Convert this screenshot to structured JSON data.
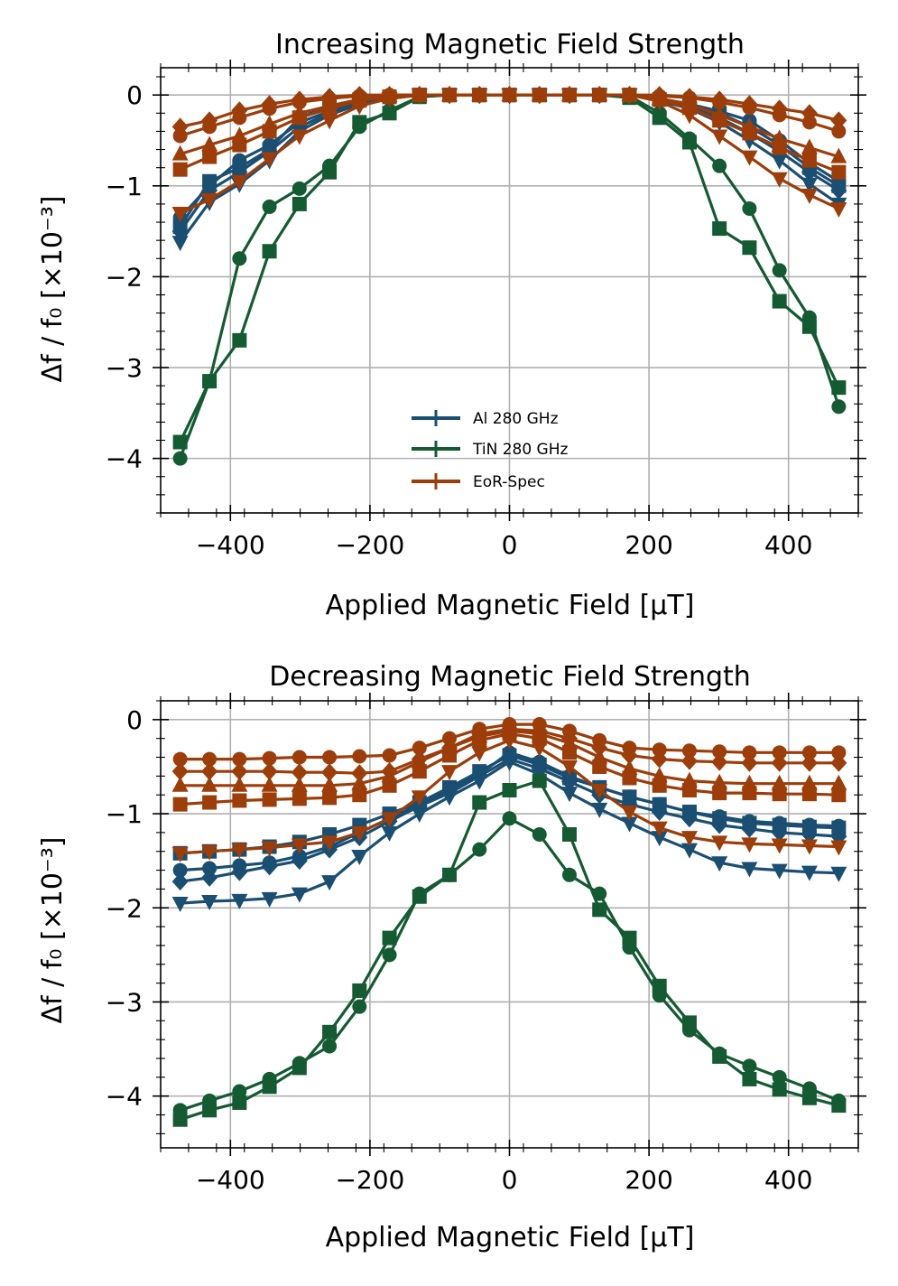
{
  "colors": {
    "al": "#1b4f72",
    "tin": "#145a32",
    "eor": "#9c3d0a"
  },
  "legend": [
    "Al 280 GHz",
    "TiN 280 GHz",
    "EoR-Spec"
  ],
  "chart_data": [
    {
      "type": "line",
      "title": "Increasing Magnetic Field Strength",
      "xlabel": "Applied Magnetic Field [μT]",
      "ylabel": "Δf / f₀ [×10⁻³]",
      "xlim": [
        -500,
        500
      ],
      "ylim": [
        -4.6,
        0.3
      ],
      "xticks": [
        -400,
        -200,
        0,
        200,
        400
      ],
      "xtick_labels": [
        "−400",
        "−200",
        "0",
        "200",
        "400"
      ],
      "yticks": [
        0,
        -1,
        -2,
        -3,
        -4
      ],
      "ytick_labels": [
        "0",
        "−1",
        "−2",
        "−3",
        "−4"
      ],
      "grid": true,
      "legend_position": "lower-center",
      "x": [
        -472,
        -430,
        -387,
        -344,
        -301,
        -258,
        -215,
        -172,
        -129,
        -86,
        -43,
        0,
        43,
        86,
        129,
        172,
        215,
        258,
        301,
        344,
        387,
        430,
        472
      ],
      "series": [
        {
          "name": "Al 280 GHz",
          "group": "al",
          "marker": "circle",
          "values": [
            -1.35,
            -1.0,
            -0.72,
            -0.55,
            -0.3,
            -0.18,
            -0.08,
            -0.03,
            0,
            0,
            0,
            0,
            0,
            0,
            0,
            0,
            -0.04,
            -0.1,
            -0.18,
            -0.28,
            -0.5,
            -0.75,
            -0.95
          ]
        },
        {
          "name": "Al 280 GHz",
          "group": "al",
          "marker": "square",
          "values": [
            -1.45,
            -0.95,
            -0.8,
            -0.6,
            -0.25,
            -0.12,
            -0.05,
            -0.02,
            0,
            0,
            0,
            0,
            0,
            0,
            0,
            0,
            -0.05,
            -0.12,
            -0.2,
            -0.35,
            -0.55,
            -0.8,
            -1.0
          ]
        },
        {
          "name": "Al 280 GHz",
          "group": "al",
          "marker": "diamond",
          "values": [
            -1.5,
            -1.05,
            -0.85,
            -0.62,
            -0.35,
            -0.2,
            -0.09,
            -0.04,
            0,
            0,
            0,
            0,
            0,
            0,
            0,
            0,
            -0.05,
            -0.13,
            -0.25,
            -0.42,
            -0.62,
            -0.85,
            -1.05
          ]
        },
        {
          "name": "Al 280 GHz",
          "group": "al",
          "marker": "triangle_down",
          "values": [
            -1.62,
            -1.18,
            -0.98,
            -0.72,
            -0.4,
            -0.22,
            -0.1,
            -0.04,
            0,
            0,
            0,
            0,
            0,
            0,
            0,
            0,
            -0.06,
            -0.15,
            -0.3,
            -0.5,
            -0.72,
            -0.98,
            -1.2
          ]
        },
        {
          "name": "TiN 280 GHz",
          "group": "tin",
          "marker": "circle",
          "values": [
            -4.0,
            -3.15,
            -1.8,
            -1.23,
            -1.03,
            -0.78,
            -0.35,
            -0.17,
            -0.02,
            0,
            0,
            0,
            0,
            0,
            0,
            -0.01,
            -0.2,
            -0.48,
            -0.78,
            -1.25,
            -1.93,
            -2.45,
            -3.43
          ]
        },
        {
          "name": "TiN 280 GHz",
          "group": "tin",
          "marker": "square",
          "values": [
            -3.82,
            -3.15,
            -2.7,
            -1.72,
            -1.2,
            -0.85,
            -0.3,
            -0.2,
            -0.02,
            0,
            0,
            0,
            0,
            0,
            0,
            -0.03,
            -0.25,
            -0.52,
            -1.47,
            -1.68,
            -2.27,
            -2.55,
            -3.22
          ]
        },
        {
          "name": "EoR-Spec",
          "group": "eor",
          "marker": "diamond",
          "values": [
            -0.35,
            -0.28,
            -0.17,
            -0.1,
            -0.05,
            -0.02,
            0,
            0,
            0,
            0,
            0,
            0,
            0,
            0,
            0,
            0,
            0,
            -0.02,
            -0.05,
            -0.1,
            -0.15,
            -0.2,
            -0.28
          ]
        },
        {
          "name": "EoR-Spec",
          "group": "eor",
          "marker": "circle",
          "values": [
            -0.45,
            -0.35,
            -0.25,
            -0.15,
            -0.08,
            -0.04,
            -0.01,
            0,
            0,
            0,
            0,
            0,
            0,
            0,
            0,
            0,
            -0.01,
            -0.03,
            -0.08,
            -0.14,
            -0.22,
            -0.3,
            -0.4
          ]
        },
        {
          "name": "EoR-Spec",
          "group": "eor",
          "marker": "triangle_up",
          "values": [
            -0.65,
            -0.55,
            -0.45,
            -0.32,
            -0.2,
            -0.12,
            -0.05,
            -0.01,
            0,
            0,
            0,
            0,
            0,
            0,
            0,
            0,
            -0.04,
            -0.1,
            -0.22,
            -0.35,
            -0.48,
            -0.58,
            -0.68
          ]
        },
        {
          "name": "EoR-Spec",
          "group": "eor",
          "marker": "square",
          "values": [
            -0.82,
            -0.68,
            -0.55,
            -0.4,
            -0.25,
            -0.15,
            -0.06,
            -0.02,
            0,
            0,
            0,
            0,
            0,
            0,
            0,
            0,
            -0.05,
            -0.14,
            -0.28,
            -0.42,
            -0.58,
            -0.72,
            -0.85
          ]
        },
        {
          "name": "EoR-Spec",
          "group": "eor",
          "marker": "triangle_down",
          "values": [
            -1.3,
            -1.15,
            -0.95,
            -0.7,
            -0.45,
            -0.28,
            -0.12,
            -0.04,
            0,
            0,
            0,
            0,
            0,
            0,
            0,
            0,
            -0.07,
            -0.22,
            -0.45,
            -0.68,
            -0.92,
            -1.1,
            -1.25
          ]
        }
      ]
    },
    {
      "type": "line",
      "title": "Decreasing Magnetic Field Strength",
      "xlabel": "Applied Magnetic Field [μT]",
      "ylabel": "Δf / f₀  [×10⁻³]",
      "xlim": [
        -500,
        500
      ],
      "ylim": [
        -4.55,
        0.2
      ],
      "xticks": [
        -400,
        -200,
        0,
        200,
        400
      ],
      "xtick_labels": [
        "−400",
        "−200",
        "0",
        "200",
        "400"
      ],
      "yticks": [
        0,
        -1,
        -2,
        -3,
        -4
      ],
      "ytick_labels": [
        "0",
        "−1",
        "−2",
        "−3",
        "−4"
      ],
      "grid": true,
      "x": [
        -472,
        -430,
        -387,
        -344,
        -301,
        -258,
        -215,
        -172,
        -129,
        -86,
        -43,
        0,
        43,
        86,
        129,
        172,
        215,
        258,
        301,
        344,
        387,
        430,
        472
      ],
      "series": [
        {
          "name": "Al 280 GHz",
          "group": "al",
          "marker": "square",
          "values": [
            -1.42,
            -1.4,
            -1.38,
            -1.35,
            -1.3,
            -1.22,
            -1.12,
            -1.0,
            -0.88,
            -0.72,
            -0.55,
            -0.38,
            -0.48,
            -0.62,
            -0.72,
            -0.82,
            -0.9,
            -0.98,
            -1.05,
            -1.1,
            -1.12,
            -1.14,
            -1.15
          ]
        },
        {
          "name": "Al 280 GHz",
          "group": "al",
          "marker": "circle",
          "values": [
            -1.6,
            -1.58,
            -1.55,
            -1.52,
            -1.45,
            -1.35,
            -1.2,
            -1.05,
            -0.9,
            -0.75,
            -0.58,
            -0.35,
            -0.45,
            -0.6,
            -0.72,
            -0.82,
            -0.9,
            -0.98,
            -1.03,
            -1.08,
            -1.1,
            -1.12,
            -1.13
          ]
        },
        {
          "name": "Al 280 GHz",
          "group": "al",
          "marker": "diamond",
          "values": [
            -1.72,
            -1.68,
            -1.62,
            -1.56,
            -1.5,
            -1.38,
            -1.25,
            -1.08,
            -0.92,
            -0.78,
            -0.6,
            -0.42,
            -0.52,
            -0.66,
            -0.8,
            -0.9,
            -0.98,
            -1.05,
            -1.12,
            -1.16,
            -1.2,
            -1.22,
            -1.24
          ]
        },
        {
          "name": "Al 280 GHz",
          "group": "al",
          "marker": "triangle_down",
          "values": [
            -1.95,
            -1.93,
            -1.92,
            -1.9,
            -1.85,
            -1.72,
            -1.45,
            -1.2,
            -1.0,
            -0.82,
            -0.65,
            -0.45,
            -0.58,
            -0.78,
            -0.95,
            -1.1,
            -1.25,
            -1.38,
            -1.52,
            -1.58,
            -1.6,
            -1.62,
            -1.63
          ]
        },
        {
          "name": "TiN 280 GHz",
          "group": "tin",
          "marker": "circle",
          "values": [
            -4.15,
            -4.05,
            -3.95,
            -3.82,
            -3.65,
            -3.47,
            -3.05,
            -2.5,
            -1.85,
            -1.65,
            -1.38,
            -1.05,
            -1.22,
            -1.65,
            -1.85,
            -2.42,
            -2.93,
            -3.3,
            -3.55,
            -3.68,
            -3.8,
            -3.92,
            -4.05
          ]
        },
        {
          "name": "TiN 280 GHz",
          "group": "tin",
          "marker": "square",
          "values": [
            -4.25,
            -4.15,
            -4.07,
            -3.9,
            -3.7,
            -3.32,
            -2.88,
            -2.32,
            -1.88,
            -1.65,
            -0.88,
            -0.75,
            -0.65,
            -1.22,
            -2.02,
            -2.32,
            -2.83,
            -3.22,
            -3.58,
            -3.82,
            -3.93,
            -4.02,
            -4.1
          ]
        },
        {
          "name": "EoR-Spec",
          "group": "eor",
          "marker": "circle",
          "values": [
            -0.42,
            -0.42,
            -0.42,
            -0.41,
            -0.4,
            -0.4,
            -0.39,
            -0.38,
            -0.3,
            -0.2,
            -0.1,
            -0.05,
            -0.05,
            -0.12,
            -0.22,
            -0.3,
            -0.32,
            -0.33,
            -0.34,
            -0.35,
            -0.35,
            -0.35,
            -0.35
          ]
        },
        {
          "name": "EoR-Spec",
          "group": "eor",
          "marker": "diamond",
          "values": [
            -0.55,
            -0.55,
            -0.55,
            -0.55,
            -0.56,
            -0.56,
            -0.57,
            -0.55,
            -0.42,
            -0.3,
            -0.15,
            -0.1,
            -0.12,
            -0.2,
            -0.3,
            -0.38,
            -0.42,
            -0.44,
            -0.45,
            -0.46,
            -0.46,
            -0.46,
            -0.46
          ]
        },
        {
          "name": "EoR-Spec",
          "group": "eor",
          "marker": "triangle_up",
          "values": [
            -0.7,
            -0.7,
            -0.7,
            -0.7,
            -0.7,
            -0.7,
            -0.68,
            -0.6,
            -0.45,
            -0.3,
            -0.18,
            -0.12,
            -0.15,
            -0.25,
            -0.4,
            -0.52,
            -0.6,
            -0.65,
            -0.67,
            -0.68,
            -0.68,
            -0.68,
            -0.68
          ]
        },
        {
          "name": "EoR-Spec",
          "group": "eor",
          "marker": "square",
          "values": [
            -0.9,
            -0.88,
            -0.86,
            -0.85,
            -0.84,
            -0.83,
            -0.8,
            -0.7,
            -0.55,
            -0.38,
            -0.22,
            -0.15,
            -0.2,
            -0.35,
            -0.5,
            -0.62,
            -0.7,
            -0.75,
            -0.78,
            -0.78,
            -0.79,
            -0.79,
            -0.8
          ]
        },
        {
          "name": "EoR-Spec",
          "group": "eor",
          "marker": "triangle_down",
          "values": [
            -1.42,
            -1.4,
            -1.38,
            -1.36,
            -1.33,
            -1.3,
            -1.2,
            -1.05,
            -0.82,
            -0.55,
            -0.35,
            -0.22,
            -0.3,
            -0.5,
            -0.75,
            -0.98,
            -1.15,
            -1.25,
            -1.3,
            -1.32,
            -1.33,
            -1.34,
            -1.35
          ]
        }
      ]
    }
  ]
}
